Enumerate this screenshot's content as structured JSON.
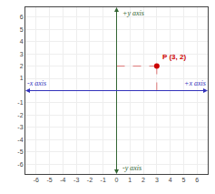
{
  "chart_data": {
    "type": "scatter",
    "x": [
      3
    ],
    "series": [
      {
        "values": [
          2
        ],
        "color": "#cc0000",
        "marker": "circle",
        "line_style": "dashed"
      }
    ],
    "xlim": [
      -6.8,
      6.8
    ],
    "ylim": [
      -6.8,
      6.8
    ],
    "xticks": [
      -6,
      -5,
      -4,
      -3,
      -2,
      -1,
      0,
      1,
      2,
      3,
      4,
      5,
      6
    ],
    "yticks": [
      -6,
      -5,
      -4,
      -3,
      -2,
      -1,
      1,
      2,
      3,
      4,
      5,
      6
    ],
    "grid": true,
    "annotations": [
      {
        "text": "+x axis",
        "x": 6.8,
        "y": 0,
        "color": "#3333bb"
      },
      {
        "text": "-x axis",
        "x": -6.8,
        "y": 0,
        "color": "#3333bb"
      },
      {
        "text": "+y axis",
        "x": 0,
        "y": 6.8,
        "color": "#336633"
      },
      {
        "text": "-y axis",
        "x": 0,
        "y": -6.8,
        "color": "#336633"
      },
      {
        "text": "P (3, 2)",
        "x": 3,
        "y": 2,
        "color": "#cc0000"
      }
    ]
  }
}
